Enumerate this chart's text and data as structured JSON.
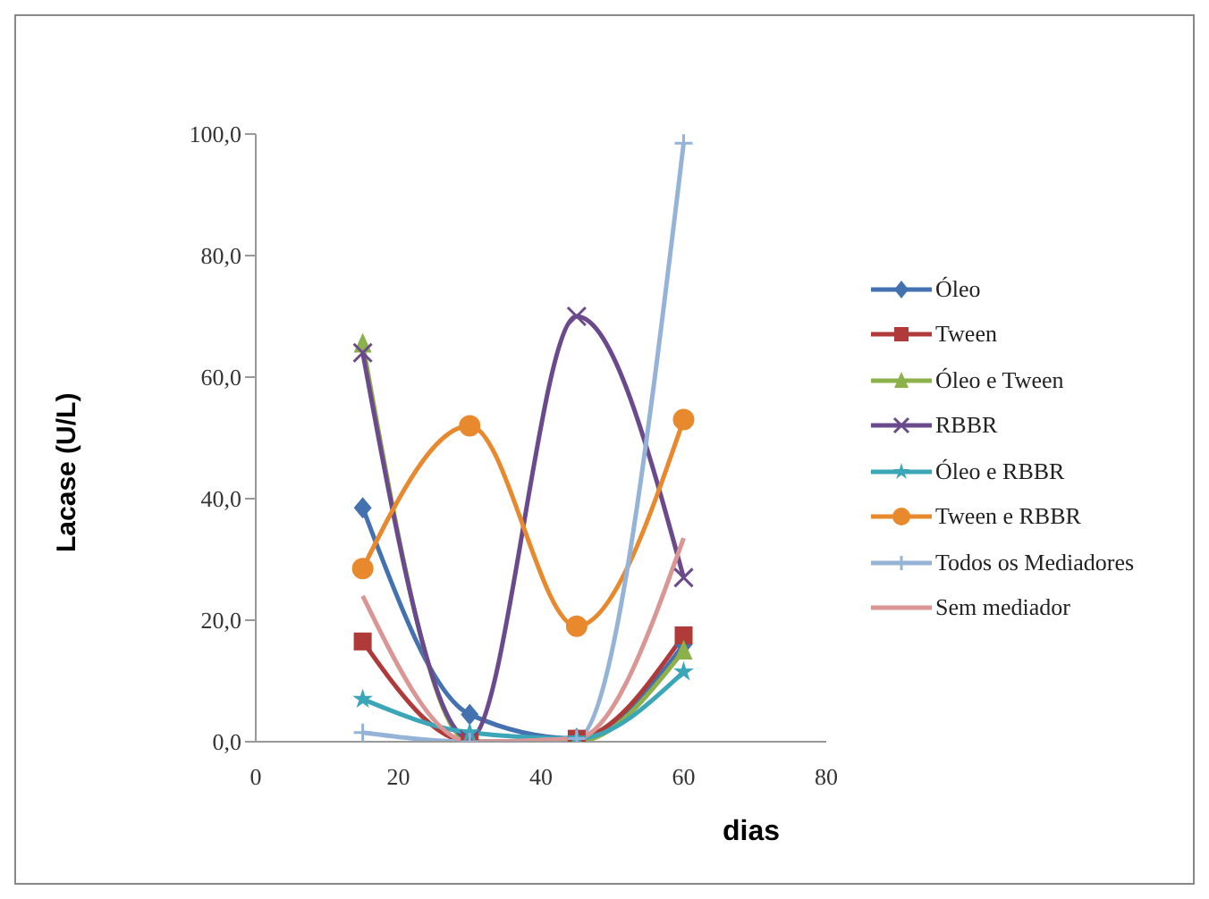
{
  "chart_data": {
    "type": "line",
    "xlabel": "dias",
    "ylabel": "Lacase (U/L)",
    "x": [
      15,
      30,
      45,
      60
    ],
    "series": [
      {
        "name": "Óleo",
        "color": "#4472b0",
        "values": [
          38.5,
          4.5,
          0.5,
          16
        ],
        "marker": "diamond"
      },
      {
        "name": "Tween",
        "color": "#b03a3a",
        "values": [
          16.5,
          0,
          0.5,
          17.5
        ],
        "marker": "square"
      },
      {
        "name": "Óleo e Tween",
        "color": "#8cb04a",
        "values": [
          65.5,
          0,
          0,
          15
        ],
        "marker": "triangle"
      },
      {
        "name": "RBBR",
        "color": "#6a4a8c",
        "values": [
          64,
          0.5,
          70,
          27
        ],
        "marker": "cross"
      },
      {
        "name": "Óleo e RBBR",
        "color": "#3aa6b8",
        "values": [
          7,
          1.5,
          0.5,
          11.5
        ],
        "marker": "star"
      },
      {
        "name": "Tween e RBBR",
        "color": "#e8892e",
        "values": [
          28.5,
          52,
          19,
          53
        ],
        "marker": "circle"
      },
      {
        "name": "Todos os Mediadores",
        "color": "#95b3d7",
        "values": [
          1.5,
          0,
          0.5,
          98.5
        ],
        "marker": "plus"
      },
      {
        "name": "Sem mediador",
        "color": "#d99694",
        "values": [
          24,
          0,
          0.5,
          33.5
        ],
        "marker": "none"
      }
    ],
    "xlim": [
      0,
      80
    ],
    "xticks": [
      0,
      20,
      40,
      60,
      80
    ],
    "ylim": [
      0,
      100
    ],
    "yticks": [
      {
        "value": 0,
        "label": "0,0"
      },
      {
        "value": 20,
        "label": "20,0"
      },
      {
        "value": 40,
        "label": "40,0"
      },
      {
        "value": 60,
        "label": "60,0"
      },
      {
        "value": 80,
        "label": "80,0"
      },
      {
        "value": 100,
        "label": "100,0"
      }
    ],
    "grid": false,
    "legend": "right"
  }
}
